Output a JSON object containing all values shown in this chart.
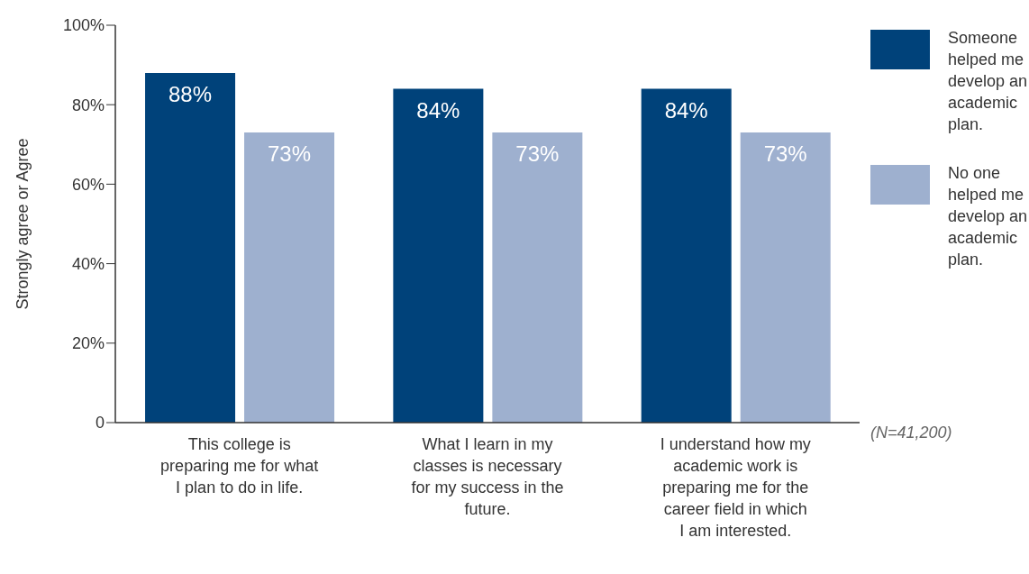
{
  "chart_data": {
    "type": "bar",
    "ylabel": "Strongly agree or Agree",
    "categories": [
      "This college is preparing me for what I plan to do in life.",
      "What I learn in my classes is necessary for my success in the future.",
      "I understand how my academic work is preparing me for the career field in which I am interested."
    ],
    "series": [
      {
        "name": "Someone helped me develop an academic plan.",
        "color": "#00427a",
        "values": [
          88,
          84,
          84
        ],
        "value_labels": [
          "88%",
          "84%",
          "84%"
        ]
      },
      {
        "name": "No one helped me develop an academic plan.",
        "color": "#9eb0cf",
        "values": [
          73,
          73,
          73
        ],
        "value_labels": [
          "73%",
          "73%",
          "73%"
        ]
      }
    ],
    "ylim": [
      0,
      100
    ],
    "yticks": [
      0,
      {
        "value": 20,
        "label": "20%"
      },
      {
        "value": 40,
        "label": "40%"
      },
      {
        "value": 60,
        "label": "60%"
      },
      {
        "value": 80,
        "label": "80%"
      },
      {
        "value": 100,
        "label": "100%"
      }
    ],
    "legend": "top right",
    "annotations": [
      "(N=41,200)"
    ]
  }
}
